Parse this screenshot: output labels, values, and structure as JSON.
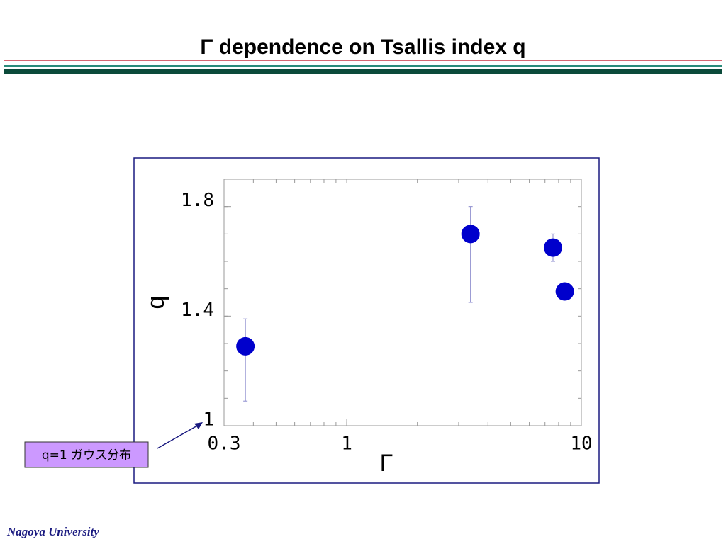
{
  "header": {
    "title": "Γ dependence on Tsallis index q"
  },
  "footer": {
    "text": "Nagoya University"
  },
  "chart_data": {
    "type": "scatter",
    "x_label": "Γ",
    "y_label": "q",
    "annotation": "q=1 ガウス分布",
    "x_log": true,
    "xlim": [
      0.3,
      10
    ],
    "xticks": [
      0.3,
      1,
      10
    ],
    "ylim": [
      1,
      1.9
    ],
    "yticks": [
      1,
      1.4,
      1.8
    ],
    "series": [
      {
        "color": "#0000cc",
        "x": [
          0.37,
          3.37,
          7.57,
          8.5
        ],
        "values": [
          1.29,
          1.7,
          1.65,
          1.49
        ],
        "error_plus": [
          0.1,
          0.1,
          0.05,
          null
        ],
        "error_minus": [
          0.2,
          0.25,
          0.05,
          null
        ]
      }
    ]
  }
}
